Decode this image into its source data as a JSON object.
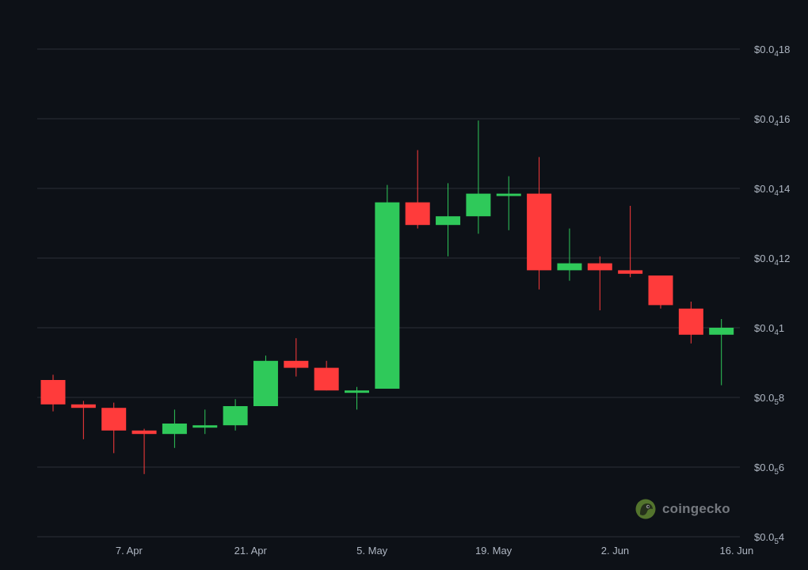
{
  "colors": {
    "background": "#0d1117",
    "up": "#2fc95a",
    "down": "#ff3b3b",
    "grid": "#2a2f37",
    "label": "#aeb6c2"
  },
  "watermark": {
    "text": "coingecko",
    "icon": "gecko-logo-icon"
  },
  "chart_data": {
    "type": "candlestick",
    "title": "",
    "xlabel": "",
    "ylabel": "",
    "y_unit": "1e-6 USD (shown as $0.0₄ prefix = 0.0000)",
    "ylim": [
      4,
      18
    ],
    "grid": true,
    "legend": "none",
    "y_ticks": [
      {
        "value": 18,
        "prefix": "$0.0",
        "zeros": "4",
        "digits": "18"
      },
      {
        "value": 16,
        "prefix": "$0.0",
        "zeros": "4",
        "digits": "16"
      },
      {
        "value": 14,
        "prefix": "$0.0",
        "zeros": "4",
        "digits": "14"
      },
      {
        "value": 12,
        "prefix": "$0.0",
        "zeros": "4",
        "digits": "12"
      },
      {
        "value": 10,
        "prefix": "$0.0",
        "zeros": "4",
        "digits": "1"
      },
      {
        "value": 8,
        "prefix": "$0.0",
        "zeros": "5",
        "digits": "8"
      },
      {
        "value": 6,
        "prefix": "$0.0",
        "zeros": "5",
        "digits": "6"
      },
      {
        "value": 4,
        "prefix": "$0.0",
        "zeros": "5",
        "digits": "4"
      }
    ],
    "x_ticks": [
      "7. Apr",
      "21. Apr",
      "5. May",
      "19. May",
      "2. Jun",
      "16. Jun"
    ],
    "x_tick_index": [
      2.5,
      6.5,
      10.5,
      14.5,
      18.5,
      22.5
    ],
    "candles": [
      {
        "o": 8.5,
        "h": 8.65,
        "l": 7.6,
        "c": 7.8
      },
      {
        "o": 7.8,
        "h": 7.9,
        "l": 6.8,
        "c": 7.7
      },
      {
        "o": 7.7,
        "h": 7.85,
        "l": 6.4,
        "c": 7.05
      },
      {
        "o": 7.05,
        "h": 7.1,
        "l": 5.8,
        "c": 6.95
      },
      {
        "o": 6.95,
        "h": 7.65,
        "l": 6.55,
        "c": 7.25
      },
      {
        "o": 7.2,
        "h": 7.65,
        "l": 6.95,
        "c": 7.2
      },
      {
        "o": 7.2,
        "h": 7.95,
        "l": 7.05,
        "c": 7.75
      },
      {
        "o": 7.75,
        "h": 9.2,
        "l": 7.75,
        "c": 9.05
      },
      {
        "o": 9.05,
        "h": 9.7,
        "l": 8.6,
        "c": 8.85
      },
      {
        "o": 8.85,
        "h": 9.05,
        "l": 8.2,
        "c": 8.2
      },
      {
        "o": 8.15,
        "h": 8.3,
        "l": 7.65,
        "c": 8.2
      },
      {
        "o": 8.25,
        "h": 14.1,
        "l": 8.25,
        "c": 13.6
      },
      {
        "o": 13.6,
        "h": 15.1,
        "l": 12.85,
        "c": 12.95
      },
      {
        "o": 12.95,
        "h": 14.15,
        "l": 12.05,
        "c": 13.2
      },
      {
        "o": 13.2,
        "h": 15.95,
        "l": 12.7,
        "c": 13.85
      },
      {
        "o": 13.8,
        "h": 14.35,
        "l": 12.8,
        "c": 13.85
      },
      {
        "o": 13.85,
        "h": 14.9,
        "l": 11.1,
        "c": 11.65
      },
      {
        "o": 11.65,
        "h": 12.85,
        "l": 11.35,
        "c": 11.85
      },
      {
        "o": 11.85,
        "h": 12.05,
        "l": 10.5,
        "c": 11.65
      },
      {
        "o": 11.65,
        "h": 13.5,
        "l": 11.45,
        "c": 11.55
      },
      {
        "o": 11.5,
        "h": 11.5,
        "l": 10.55,
        "c": 10.65
      },
      {
        "o": 10.55,
        "h": 10.75,
        "l": 9.55,
        "c": 9.8
      },
      {
        "o": 9.8,
        "h": 10.25,
        "l": 8.35,
        "c": 10.0
      }
    ]
  }
}
